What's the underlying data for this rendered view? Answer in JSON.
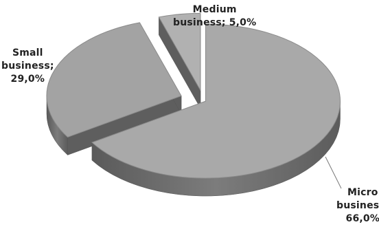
{
  "chart_data": {
    "type": "pie",
    "style": "3d-exploded",
    "categories": [
      "Micro business",
      "Small business",
      "Medium business"
    ],
    "values": [
      66.0,
      29.0,
      5.0
    ],
    "labels": [
      {
        "lines": [
          "Micro",
          "business;",
          "66,0%"
        ]
      },
      {
        "lines": [
          "Small",
          "business;",
          "29,0%"
        ]
      },
      {
        "lines": [
          "Medium",
          "business; 5,0%"
        ]
      }
    ],
    "legend": "none"
  },
  "colors": {
    "micro": "#a9a9a9",
    "small": "#a3a3a3",
    "medium": "#b1b1b1",
    "side": "#6e6e6e"
  }
}
